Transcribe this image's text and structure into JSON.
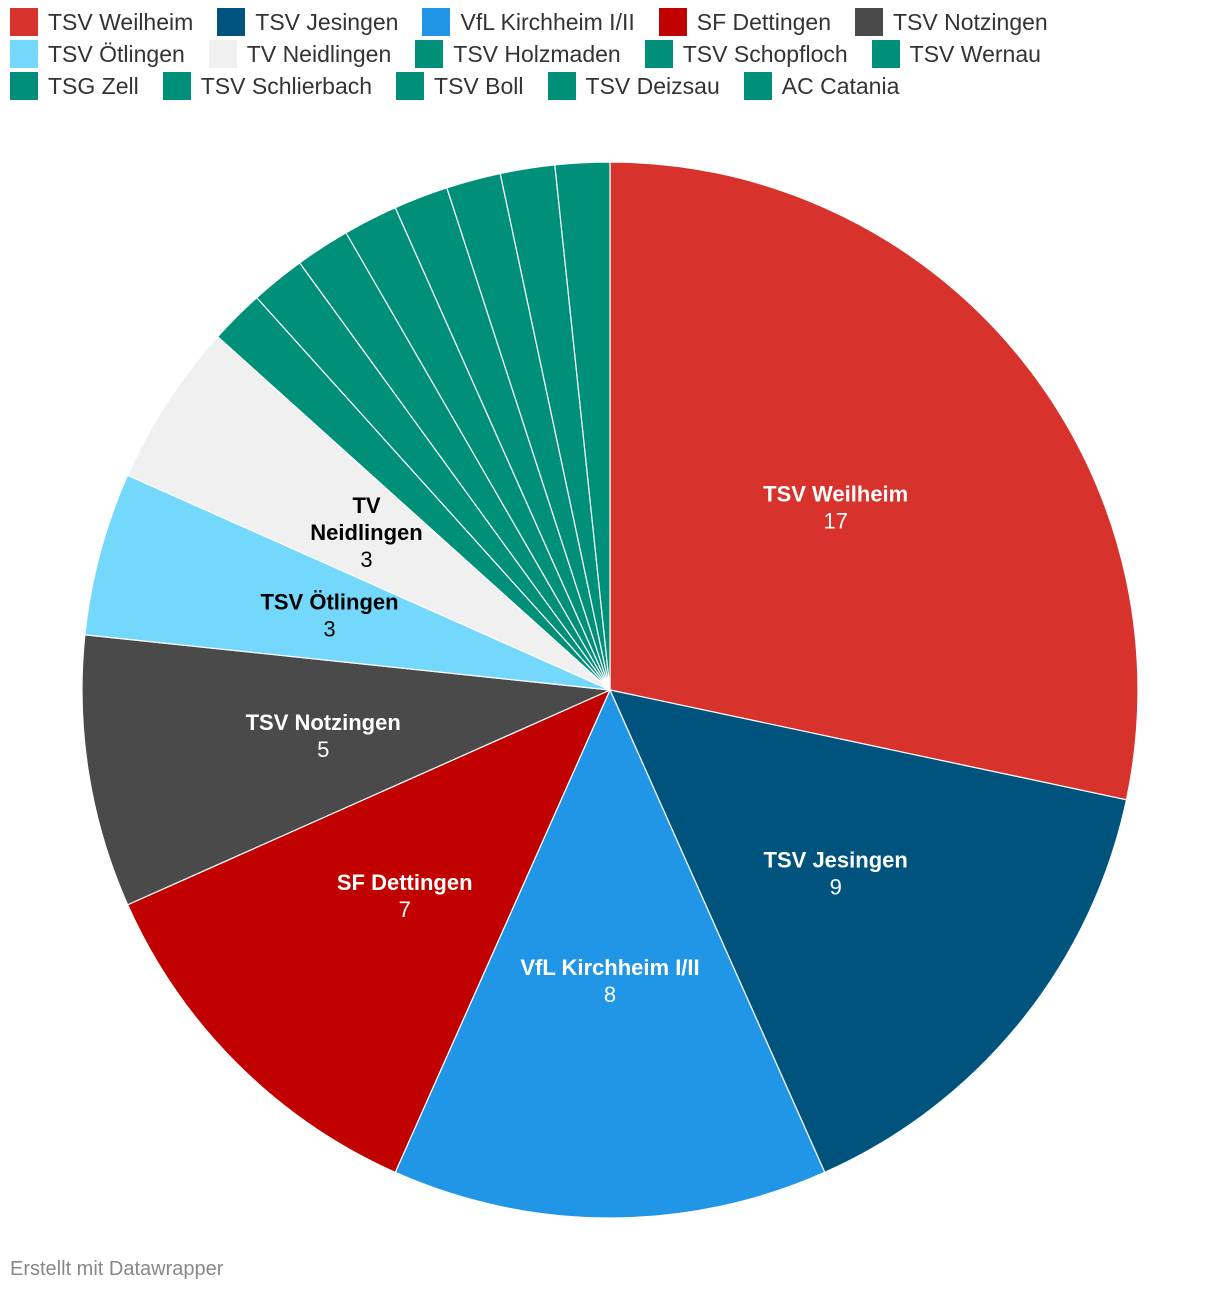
{
  "chart_data": {
    "type": "pie",
    "title": "",
    "legend": "top",
    "slices": [
      {
        "name": "TSV Weilheim",
        "value": 17,
        "color": "#d8322c",
        "label_color": "#ffffff",
        "label_lines": [
          "TSV Weilheim"
        ],
        "show_label": true
      },
      {
        "name": "TSV Jesingen",
        "value": 9,
        "color": "#00537d",
        "label_color": "#ffffff",
        "label_lines": [
          "TSV Jesingen"
        ],
        "show_label": true
      },
      {
        "name": "VfL Kirchheim I/II",
        "value": 8,
        "color": "#2196e7",
        "label_color": "#ffffff",
        "label_lines": [
          "VfL Kirchheim I/II"
        ],
        "show_label": true
      },
      {
        "name": "SF Dettingen",
        "value": 7,
        "color": "#c10000",
        "label_color": "#ffffff",
        "label_lines": [
          "SF Dettingen"
        ],
        "show_label": true
      },
      {
        "name": "TSV Notzingen",
        "value": 5,
        "color": "#4a4a4a",
        "label_color": "#ffffff",
        "label_lines": [
          "TSV Notzingen"
        ],
        "show_label": true
      },
      {
        "name": "TSV Ötlingen",
        "value": 3,
        "color": "#74d8fd",
        "label_color": "#000000",
        "label_lines": [
          "TSV Ötlingen"
        ],
        "show_label": true
      },
      {
        "name": "TV Neidlingen",
        "value": 3,
        "color": "#f0f0f0",
        "label_color": "#000000",
        "label_lines": [
          "TV",
          "Neidlingen"
        ],
        "show_label": true
      },
      {
        "name": "TSV Holzmaden",
        "value": 1,
        "color": "#00907a",
        "label_color": "#ffffff",
        "label_lines": [
          "TSV Holzmaden"
        ],
        "show_label": false
      },
      {
        "name": "TSV Schopfloch",
        "value": 1,
        "color": "#00907a",
        "label_color": "#ffffff",
        "label_lines": [
          "TSV Schopfloch"
        ],
        "show_label": false
      },
      {
        "name": "TSV Wernau",
        "value": 1,
        "color": "#00907a",
        "label_color": "#ffffff",
        "label_lines": [
          "TSV Wernau"
        ],
        "show_label": false
      },
      {
        "name": "TSG Zell",
        "value": 1,
        "color": "#00907a",
        "label_color": "#ffffff",
        "label_lines": [
          "TSG Zell"
        ],
        "show_label": false
      },
      {
        "name": "TSV Schlierbach",
        "value": 1,
        "color": "#00907a",
        "label_color": "#ffffff",
        "label_lines": [
          "TSV Schlierbach"
        ],
        "show_label": false
      },
      {
        "name": "TSV Boll",
        "value": 1,
        "color": "#00907a",
        "label_color": "#ffffff",
        "label_lines": [
          "TSV Boll"
        ],
        "show_label": false
      },
      {
        "name": "TSV Deizsau",
        "value": 1,
        "color": "#00907a",
        "label_color": "#ffffff",
        "label_lines": [
          "TSV Deizsau"
        ],
        "show_label": false
      },
      {
        "name": "AC Catania",
        "value": 1,
        "color": "#00907a",
        "label_color": "#ffffff",
        "label_lines": [
          "AC Catania"
        ],
        "show_label": false
      }
    ]
  },
  "footer": {
    "credit": "Erstellt mit Datawrapper"
  }
}
